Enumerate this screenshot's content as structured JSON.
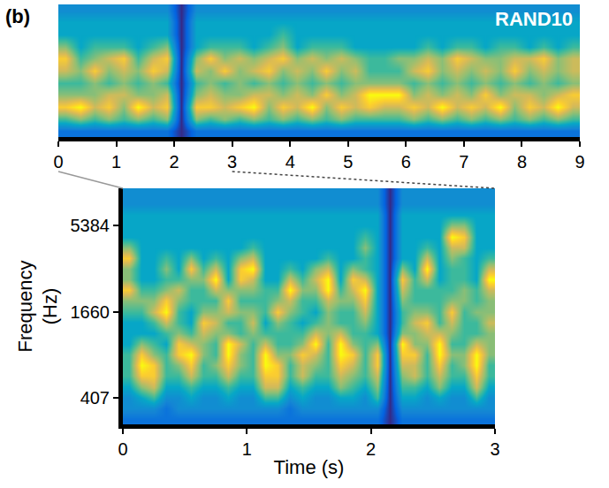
{
  "chart_data": [
    {
      "type": "heatmap",
      "panel": "(b)",
      "annotations": [
        "RAND10"
      ],
      "x": [
        0.125,
        0.375,
        0.625,
        0.875,
        1.125,
        1.375,
        1.625,
        1.875,
        2.125,
        2.375,
        2.625,
        2.875,
        3.125,
        3.375,
        3.625,
        3.875,
        4.125,
        4.375,
        4.625,
        4.875,
        5.125,
        5.375,
        5.625,
        5.875,
        6.125,
        6.375,
        6.625,
        6.875,
        7.125,
        7.375,
        7.625,
        7.875,
        8.125,
        8.375,
        8.625,
        8.875
      ],
      "y": [
        null,
        null,
        null,
        null,
        null,
        null,
        null,
        null,
        null,
        null,
        null
      ],
      "cells": [
        [
          2,
          5,
          8,
          6,
          5,
          7,
          8,
          6,
          4,
          4,
          3
        ],
        [
          2,
          6,
          9,
          6,
          5,
          6,
          5,
          4,
          4,
          4,
          3
        ],
        [
          2,
          5,
          7,
          6,
          6,
          8,
          6,
          5,
          4,
          4,
          3
        ],
        [
          2,
          6,
          8,
          7,
          5,
          6,
          7,
          5,
          4,
          4,
          3
        ],
        [
          2,
          5,
          6,
          7,
          6,
          7,
          8,
          5,
          4,
          4,
          3
        ],
        [
          2,
          6,
          9,
          6,
          5,
          6,
          5,
          4,
          4,
          4,
          3
        ],
        [
          2,
          5,
          7,
          6,
          6,
          8,
          7,
          5,
          4,
          4,
          3
        ],
        [
          2,
          6,
          8,
          7,
          5,
          7,
          8,
          6,
          4,
          4,
          3
        ],
        [
          0,
          0,
          0,
          0,
          0,
          0,
          0,
          0,
          0,
          0,
          0
        ],
        [
          2,
          6,
          8,
          6,
          5,
          7,
          6,
          4,
          4,
          4,
          3
        ],
        [
          2,
          5,
          8,
          7,
          6,
          6,
          8,
          5,
          4,
          4,
          3
        ],
        [
          2,
          6,
          7,
          6,
          5,
          8,
          6,
          5,
          4,
          4,
          3
        ],
        [
          2,
          5,
          8,
          6,
          6,
          6,
          7,
          5,
          4,
          4,
          3
        ],
        [
          2,
          6,
          9,
          7,
          5,
          7,
          6,
          4,
          4,
          4,
          3
        ],
        [
          2,
          5,
          6,
          7,
          6,
          8,
          7,
          5,
          4,
          4,
          3
        ],
        [
          2,
          6,
          8,
          6,
          5,
          6,
          8,
          6,
          5,
          4,
          3
        ],
        [
          2,
          5,
          7,
          7,
          6,
          7,
          6,
          4,
          4,
          4,
          3
        ],
        [
          2,
          6,
          9,
          6,
          5,
          6,
          7,
          5,
          4,
          4,
          3
        ],
        [
          2,
          5,
          6,
          8,
          6,
          8,
          6,
          5,
          4,
          4,
          3
        ],
        [
          2,
          6,
          8,
          6,
          5,
          6,
          7,
          5,
          4,
          4,
          3
        ],
        [
          2,
          5,
          7,
          7,
          6,
          7,
          6,
          4,
          4,
          4,
          3
        ],
        [
          2,
          5,
          8,
          9,
          6,
          5,
          5,
          4,
          4,
          4,
          3
        ],
        [
          2,
          5,
          7,
          9,
          6,
          5,
          5,
          4,
          4,
          4,
          3
        ],
        [
          2,
          5,
          7,
          9,
          6,
          5,
          6,
          4,
          4,
          4,
          3
        ],
        [
          2,
          6,
          8,
          6,
          5,
          7,
          6,
          4,
          4,
          4,
          3
        ],
        [
          2,
          5,
          7,
          7,
          6,
          8,
          7,
          5,
          4,
          4,
          3
        ],
        [
          2,
          6,
          9,
          6,
          5,
          6,
          6,
          4,
          4,
          4,
          3
        ],
        [
          2,
          5,
          7,
          7,
          6,
          7,
          8,
          5,
          4,
          4,
          3
        ],
        [
          2,
          6,
          8,
          6,
          5,
          6,
          7,
          5,
          4,
          4,
          3
        ],
        [
          2,
          5,
          7,
          8,
          6,
          7,
          6,
          4,
          4,
          4,
          3
        ],
        [
          2,
          6,
          9,
          6,
          5,
          6,
          6,
          5,
          4,
          4,
          3
        ],
        [
          2,
          5,
          6,
          7,
          6,
          8,
          7,
          5,
          4,
          4,
          3
        ],
        [
          2,
          6,
          8,
          7,
          5,
          6,
          7,
          4,
          4,
          4,
          3
        ],
        [
          2,
          5,
          7,
          6,
          6,
          7,
          8,
          5,
          4,
          4,
          3
        ],
        [
          2,
          6,
          9,
          7,
          5,
          6,
          6,
          4,
          4,
          4,
          3
        ],
        [
          2,
          5,
          7,
          8,
          6,
          7,
          7,
          5,
          4,
          4,
          3
        ]
      ],
      "zlim": [
        0,
        9
      ],
      "xlim": [
        0,
        9
      ],
      "xticks": [
        0,
        1,
        2,
        3,
        4,
        5,
        6,
        7,
        8,
        9
      ],
      "tick_labels": "x"
    },
    {
      "type": "heatmap",
      "x_label": "Time (s)",
      "y_label": "Frequency (Hz)",
      "x": [
        0.05,
        0.15,
        0.25,
        0.35,
        0.45,
        0.55,
        0.65,
        0.75,
        0.85,
        0.95,
        1.05,
        1.15,
        1.25,
        1.35,
        1.45,
        1.55,
        1.65,
        1.75,
        1.85,
        1.95,
        2.05,
        2.15,
        2.25,
        2.35,
        2.45,
        2.55,
        2.65,
        2.75,
        2.85,
        2.95
      ],
      "y": [
        null,
        null,
        "407",
        null,
        null,
        null,
        null,
        null,
        null,
        null,
        "1660",
        null,
        null,
        null,
        null,
        null,
        null,
        null,
        "5384",
        null,
        null,
        null
      ],
      "cells": [
        [
          2,
          3,
          3,
          4,
          5,
          5,
          5,
          4,
          4,
          4,
          5,
          6,
          8,
          6,
          6,
          8,
          6,
          4,
          4,
          4,
          3,
          3
        ],
        [
          2,
          3,
          4,
          6,
          8,
          9,
          8,
          6,
          4,
          4,
          5,
          6,
          5,
          4,
          4,
          4,
          4,
          4,
          4,
          4,
          3,
          3
        ],
        [
          2,
          3,
          5,
          7,
          8,
          8,
          6,
          5,
          4,
          5,
          7,
          6,
          5,
          4,
          4,
          4,
          4,
          4,
          4,
          4,
          3,
          3
        ],
        [
          2,
          2,
          3,
          4,
          5,
          5,
          5,
          4,
          5,
          7,
          9,
          8,
          6,
          5,
          6,
          5,
          4,
          4,
          4,
          4,
          3,
          3
        ],
        [
          2,
          3,
          3,
          4,
          5,
          6,
          8,
          8,
          6,
          5,
          5,
          6,
          7,
          5,
          4,
          4,
          4,
          4,
          4,
          4,
          3,
          3
        ],
        [
          2,
          3,
          4,
          5,
          7,
          8,
          9,
          7,
          5,
          4,
          4,
          5,
          5,
          6,
          8,
          6,
          4,
          4,
          4,
          4,
          3,
          3
        ],
        [
          2,
          3,
          3,
          4,
          5,
          5,
          6,
          6,
          7,
          8,
          6,
          5,
          5,
          6,
          5,
          4,
          4,
          4,
          4,
          4,
          3,
          3
        ],
        [
          2,
          3,
          3,
          4,
          5,
          6,
          5,
          5,
          6,
          7,
          6,
          5,
          7,
          9,
          7,
          5,
          4,
          4,
          4,
          4,
          3,
          3
        ],
        [
          2,
          3,
          4,
          5,
          7,
          8,
          9,
          9,
          6,
          5,
          7,
          8,
          6,
          4,
          4,
          4,
          4,
          4,
          4,
          4,
          3,
          3
        ],
        [
          2,
          3,
          3,
          4,
          5,
          6,
          6,
          7,
          5,
          5,
          6,
          5,
          6,
          8,
          8,
          6,
          4,
          4,
          4,
          4,
          3,
          3
        ],
        [
          2,
          3,
          3,
          4,
          5,
          5,
          5,
          5,
          6,
          7,
          6,
          5,
          6,
          7,
          9,
          7,
          5,
          4,
          4,
          4,
          3,
          3
        ],
        [
          2,
          3,
          5,
          7,
          8,
          9,
          9,
          7,
          5,
          4,
          5,
          5,
          5,
          4,
          4,
          4,
          4,
          4,
          4,
          4,
          3,
          3
        ],
        [
          2,
          3,
          5,
          7,
          8,
          8,
          6,
          5,
          5,
          6,
          8,
          6,
          5,
          4,
          4,
          4,
          4,
          4,
          4,
          4,
          3,
          3
        ],
        [
          2,
          2,
          3,
          4,
          5,
          5,
          6,
          5,
          5,
          5,
          6,
          7,
          9,
          7,
          5,
          4,
          4,
          4,
          4,
          4,
          3,
          3
        ],
        [
          2,
          3,
          4,
          5,
          7,
          7,
          8,
          6,
          5,
          4,
          5,
          5,
          6,
          5,
          4,
          4,
          4,
          4,
          4,
          4,
          3,
          3
        ],
        [
          2,
          3,
          3,
          4,
          5,
          6,
          7,
          9,
          7,
          5,
          4,
          5,
          6,
          7,
          6,
          4,
          4,
          4,
          4,
          4,
          3,
          3
        ],
        [
          2,
          3,
          3,
          4,
          5,
          5,
          5,
          5,
          6,
          6,
          6,
          7,
          9,
          9,
          7,
          5,
          4,
          4,
          4,
          4,
          3,
          3
        ],
        [
          2,
          3,
          4,
          6,
          7,
          8,
          9,
          9,
          7,
          5,
          5,
          6,
          5,
          4,
          4,
          4,
          4,
          4,
          4,
          4,
          3,
          3
        ],
        [
          2,
          3,
          4,
          5,
          6,
          7,
          8,
          6,
          5,
          5,
          5,
          6,
          7,
          8,
          6,
          4,
          4,
          4,
          4,
          4,
          3,
          3
        ],
        [
          2,
          3,
          3,
          4,
          5,
          5,
          5,
          5,
          5,
          6,
          7,
          8,
          9,
          7,
          5,
          5,
          6,
          5,
          4,
          4,
          3,
          3
        ],
        [
          2,
          3,
          5,
          6,
          7,
          8,
          8,
          6,
          4,
          4,
          4,
          4,
          4,
          4,
          4,
          4,
          4,
          4,
          4,
          4,
          3,
          3
        ],
        [
          0,
          0,
          0,
          0,
          0,
          0,
          0,
          0,
          0,
          0,
          0,
          0,
          0,
          0,
          0,
          0,
          0,
          0,
          0,
          0,
          0,
          0
        ],
        [
          2,
          3,
          4,
          5,
          6,
          7,
          8,
          9,
          6,
          5,
          5,
          6,
          7,
          8,
          6,
          4,
          4,
          4,
          4,
          4,
          3,
          3
        ],
        [
          2,
          3,
          4,
          5,
          7,
          7,
          8,
          6,
          6,
          7,
          6,
          5,
          5,
          5,
          4,
          4,
          4,
          4,
          4,
          4,
          3,
          3
        ],
        [
          2,
          3,
          3,
          4,
          5,
          5,
          5,
          6,
          7,
          8,
          6,
          5,
          5,
          7,
          9,
          7,
          5,
          4,
          4,
          4,
          3,
          3
        ],
        [
          2,
          3,
          4,
          6,
          7,
          8,
          9,
          9,
          7,
          5,
          5,
          5,
          5,
          4,
          4,
          4,
          4,
          4,
          4,
          4,
          3,
          3
        ],
        [
          2,
          3,
          3,
          4,
          5,
          5,
          6,
          5,
          6,
          7,
          8,
          6,
          5,
          5,
          5,
          6,
          7,
          9,
          6,
          4,
          3,
          3
        ],
        [
          2,
          3,
          3,
          4,
          5,
          6,
          6,
          5,
          5,
          5,
          5,
          6,
          6,
          5,
          5,
          5,
          7,
          8,
          6,
          4,
          3,
          3
        ],
        [
          2,
          3,
          5,
          7,
          8,
          9,
          9,
          7,
          5,
          5,
          6,
          5,
          5,
          4,
          4,
          4,
          4,
          4,
          4,
          4,
          3,
          3
        ],
        [
          2,
          3,
          3,
          4,
          5,
          5,
          6,
          6,
          6,
          7,
          6,
          6,
          7,
          9,
          7,
          5,
          4,
          4,
          4,
          4,
          3,
          3
        ]
      ],
      "zlim": [
        0,
        9
      ],
      "xlim": [
        0,
        3
      ],
      "xticks": [
        0,
        1,
        2,
        3
      ]
    }
  ]
}
